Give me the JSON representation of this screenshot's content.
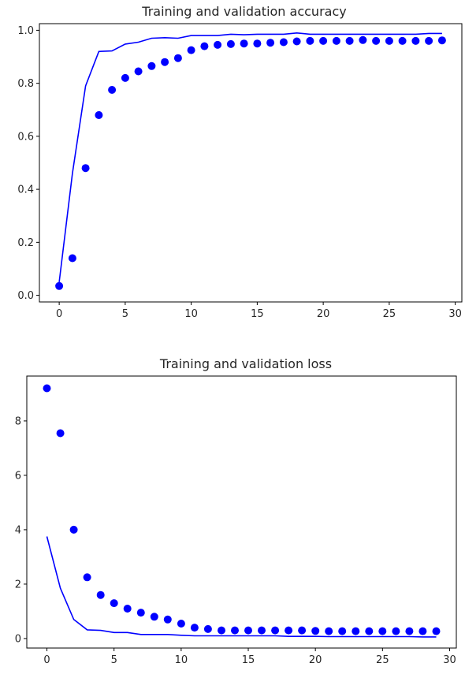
{
  "chart_data": [
    {
      "type": "scatter+line",
      "title": "Training and validation accuracy",
      "xlabel": "",
      "ylabel": "",
      "xlim": [
        -1.5,
        30.5
      ],
      "ylim": [
        -0.025,
        1.025
      ],
      "xticks": [
        0,
        5,
        10,
        15,
        20,
        25,
        30
      ],
      "yticks": [
        0.0,
        0.2,
        0.4,
        0.6,
        0.8,
        1.0
      ],
      "ytick_labels": [
        "0.0",
        "0.2",
        "0.4",
        "0.6",
        "0.8",
        "1.0"
      ],
      "grid": false,
      "color": "#0000ff",
      "series": [
        {
          "style": "points",
          "x": [
            0,
            1,
            2,
            3,
            4,
            5,
            6,
            7,
            8,
            9,
            10,
            11,
            12,
            13,
            14,
            15,
            16,
            17,
            18,
            19,
            20,
            21,
            22,
            23,
            24,
            25,
            26,
            27,
            28,
            29
          ],
          "y": [
            0.035,
            0.14,
            0.48,
            0.68,
            0.775,
            0.82,
            0.845,
            0.865,
            0.88,
            0.895,
            0.925,
            0.94,
            0.945,
            0.948,
            0.95,
            0.95,
            0.953,
            0.955,
            0.958,
            0.96,
            0.96,
            0.96,
            0.96,
            0.963,
            0.96,
            0.96,
            0.96,
            0.96,
            0.96,
            0.962
          ]
        },
        {
          "style": "line",
          "x": [
            0,
            1,
            2,
            3,
            4,
            5,
            6,
            7,
            8,
            9,
            10,
            11,
            12,
            13,
            14,
            15,
            16,
            17,
            18,
            19,
            20,
            21,
            22,
            23,
            24,
            25,
            26,
            27,
            28,
            29
          ],
          "y": [
            0.05,
            0.46,
            0.79,
            0.92,
            0.922,
            0.948,
            0.955,
            0.97,
            0.972,
            0.97,
            0.98,
            0.98,
            0.98,
            0.985,
            0.983,
            0.985,
            0.985,
            0.985,
            0.99,
            0.985,
            0.985,
            0.985,
            0.985,
            0.985,
            0.985,
            0.985,
            0.985,
            0.985,
            0.988,
            0.988
          ]
        }
      ]
    },
    {
      "type": "scatter+line",
      "title": "Training and validation loss",
      "xlabel": "",
      "ylabel": "",
      "xlim": [
        -1.5,
        30.5
      ],
      "ylim": [
        -0.35,
        9.65
      ],
      "xticks": [
        0,
        5,
        10,
        15,
        20,
        25,
        30
      ],
      "yticks": [
        0,
        2,
        4,
        6,
        8
      ],
      "ytick_labels": [
        "0",
        "2",
        "4",
        "6",
        "8"
      ],
      "grid": false,
      "color": "#0000ff",
      "series": [
        {
          "style": "points",
          "x": [
            0,
            1,
            2,
            3,
            4,
            5,
            6,
            7,
            8,
            9,
            10,
            11,
            12,
            13,
            14,
            15,
            16,
            17,
            18,
            19,
            20,
            21,
            22,
            23,
            24,
            25,
            26,
            27,
            28,
            29
          ],
          "y": [
            9.2,
            7.55,
            4.0,
            2.25,
            1.6,
            1.3,
            1.1,
            0.95,
            0.8,
            0.7,
            0.55,
            0.4,
            0.35,
            0.3,
            0.3,
            0.3,
            0.3,
            0.3,
            0.3,
            0.3,
            0.28,
            0.27,
            0.27,
            0.27,
            0.27,
            0.27,
            0.27,
            0.27,
            0.27,
            0.27
          ]
        },
        {
          "style": "line",
          "x": [
            0,
            1,
            2,
            3,
            4,
            5,
            6,
            7,
            8,
            9,
            10,
            11,
            12,
            13,
            14,
            15,
            16,
            17,
            18,
            19,
            20,
            21,
            22,
            23,
            24,
            25,
            26,
            27,
            28,
            29
          ],
          "y": [
            3.75,
            1.85,
            0.7,
            0.32,
            0.3,
            0.22,
            0.22,
            0.15,
            0.15,
            0.15,
            0.12,
            0.1,
            0.1,
            0.1,
            0.1,
            0.1,
            0.1,
            0.1,
            0.08,
            0.08,
            0.08,
            0.07,
            0.07,
            0.07,
            0.07,
            0.07,
            0.07,
            0.07,
            0.06,
            0.06
          ]
        }
      ]
    }
  ]
}
